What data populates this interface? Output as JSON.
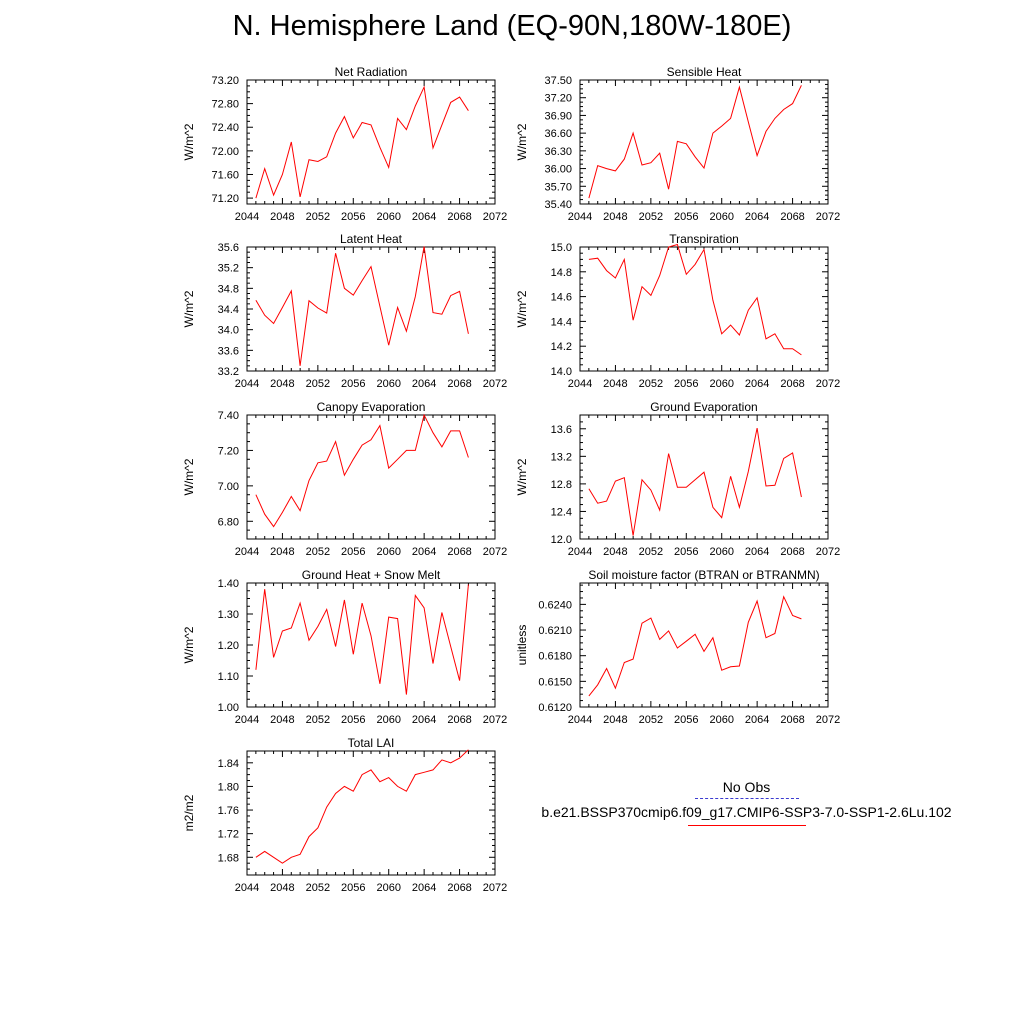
{
  "page": {
    "title": "N. Hemisphere Land (EQ-90N,180W-180E)"
  },
  "legend": {
    "obs_label": "No Obs",
    "model_label": "b.e21.BSSP370cmip6.f09_g17.CMIP6-SSP3-7.0-SSP1-2.6Lu.102",
    "obs_color": "#3b3bd0",
    "model_color": "#ff0000"
  },
  "chart_data": [
    {
      "type": "line",
      "title": "Net Radiation",
      "ylabel": "W/m^2",
      "xlim": [
        2044,
        2072
      ],
      "xticks": [
        "2044",
        "2048",
        "2052",
        "2056",
        "2060",
        "2064",
        "2068",
        "2072"
      ],
      "ylim": [
        71.1,
        73.2
      ],
      "yticks": [
        "71.20",
        "71.60",
        "72.00",
        "72.40",
        "72.80",
        "73.20"
      ],
      "series": [
        {
          "x": [
            2045,
            2046,
            2047,
            2048,
            2049,
            2050,
            2051,
            2052,
            2053,
            2054,
            2055,
            2056,
            2057,
            2058,
            2059,
            2060,
            2061,
            2062,
            2063,
            2064,
            2065,
            2066,
            2067,
            2068,
            2069
          ],
          "values": [
            71.2,
            71.7,
            71.25,
            71.6,
            72.15,
            71.22,
            71.85,
            71.82,
            71.9,
            72.3,
            72.58,
            72.22,
            72.48,
            72.44,
            72.06,
            71.72,
            72.55,
            72.36,
            72.76,
            73.08,
            72.05,
            72.44,
            72.82,
            72.91,
            72.68
          ]
        }
      ]
    },
    {
      "type": "line",
      "title": "Sensible Heat",
      "ylabel": "W/m^2",
      "xlim": [
        2044,
        2072
      ],
      "xticks": [
        "2044",
        "2048",
        "2052",
        "2056",
        "2060",
        "2064",
        "2068",
        "2072"
      ],
      "ylim": [
        35.4,
        37.5
      ],
      "yticks": [
        "35.40",
        "35.70",
        "36.00",
        "36.30",
        "36.60",
        "36.90",
        "37.20",
        "37.50"
      ],
      "series": [
        {
          "x": [
            2045,
            2046,
            2047,
            2048,
            2049,
            2050,
            2051,
            2052,
            2053,
            2054,
            2055,
            2056,
            2057,
            2058,
            2059,
            2060,
            2061,
            2062,
            2063,
            2064,
            2065,
            2066,
            2067,
            2068,
            2069
          ],
          "values": [
            35.5,
            36.05,
            36.0,
            35.96,
            36.16,
            36.6,
            36.06,
            36.1,
            36.26,
            35.65,
            36.46,
            36.42,
            36.2,
            36.01,
            36.6,
            36.72,
            36.85,
            37.38,
            36.79,
            36.22,
            36.63,
            36.85,
            37.0,
            37.1,
            37.41
          ]
        }
      ]
    },
    {
      "type": "line",
      "title": "Latent Heat",
      "ylabel": "W/m^2",
      "xlim": [
        2044,
        2072
      ],
      "xticks": [
        "2044",
        "2048",
        "2052",
        "2056",
        "2060",
        "2064",
        "2068",
        "2072"
      ],
      "ylim": [
        33.2,
        35.6
      ],
      "yticks": [
        "33.2",
        "33.6",
        "34.0",
        "34.4",
        "34.8",
        "35.2",
        "35.6"
      ],
      "series": [
        {
          "x": [
            2045,
            2046,
            2047,
            2048,
            2049,
            2050,
            2051,
            2052,
            2053,
            2054,
            2055,
            2056,
            2057,
            2058,
            2059,
            2060,
            2061,
            2062,
            2063,
            2064,
            2065,
            2066,
            2067,
            2068,
            2069
          ],
          "values": [
            34.57,
            34.28,
            34.12,
            34.43,
            34.75,
            33.3,
            34.56,
            34.42,
            34.32,
            35.48,
            34.8,
            34.67,
            34.95,
            35.22,
            34.45,
            33.7,
            34.43,
            33.97,
            34.64,
            35.61,
            34.33,
            34.3,
            34.66,
            34.74,
            33.92
          ]
        }
      ]
    },
    {
      "type": "line",
      "title": "Transpiration",
      "ylabel": "W/m^2",
      "xlim": [
        2044,
        2072
      ],
      "xticks": [
        "2044",
        "2048",
        "2052",
        "2056",
        "2060",
        "2064",
        "2068",
        "2072"
      ],
      "ylim": [
        14.0,
        15.0
      ],
      "yticks": [
        "14.0",
        "14.2",
        "14.4",
        "14.6",
        "14.8",
        "15.0"
      ],
      "series": [
        {
          "x": [
            2045,
            2046,
            2047,
            2048,
            2049,
            2050,
            2051,
            2052,
            2053,
            2054,
            2055,
            2056,
            2057,
            2058,
            2059,
            2060,
            2061,
            2062,
            2063,
            2064,
            2065,
            2066,
            2067,
            2068,
            2069
          ],
          "values": [
            14.9,
            14.91,
            14.81,
            14.75,
            14.9,
            14.41,
            14.68,
            14.61,
            14.77,
            15.0,
            15.02,
            14.78,
            14.86,
            14.98,
            14.57,
            14.3,
            14.37,
            14.29,
            14.49,
            14.59,
            14.26,
            14.3,
            14.18,
            14.18,
            14.13
          ]
        }
      ]
    },
    {
      "type": "line",
      "title": "Canopy Evaporation",
      "ylabel": "W/m^2",
      "xlim": [
        2044,
        2072
      ],
      "xticks": [
        "2044",
        "2048",
        "2052",
        "2056",
        "2060",
        "2064",
        "2068",
        "2072"
      ],
      "ylim": [
        6.7,
        7.4
      ],
      "yticks": [
        "6.80",
        "7.00",
        "7.20",
        "7.40"
      ],
      "series": [
        {
          "x": [
            2045,
            2046,
            2047,
            2048,
            2049,
            2050,
            2051,
            2052,
            2053,
            2054,
            2055,
            2056,
            2057,
            2058,
            2059,
            2060,
            2061,
            2062,
            2063,
            2064,
            2065,
            2066,
            2067,
            2068,
            2069
          ],
          "values": [
            6.95,
            6.84,
            6.77,
            6.85,
            6.94,
            6.86,
            7.03,
            7.13,
            7.14,
            7.25,
            7.06,
            7.15,
            7.23,
            7.26,
            7.34,
            7.1,
            7.15,
            7.2,
            7.2,
            7.4,
            7.3,
            7.22,
            7.31,
            7.31,
            7.16
          ]
        }
      ]
    },
    {
      "type": "line",
      "title": "Ground Evaporation",
      "ylabel": "W/m^2",
      "xlim": [
        2044,
        2072
      ],
      "xticks": [
        "2044",
        "2048",
        "2052",
        "2056",
        "2060",
        "2064",
        "2068",
        "2072"
      ],
      "ylim": [
        12.0,
        13.8
      ],
      "yticks": [
        "12.0",
        "12.4",
        "12.8",
        "13.2",
        "13.6"
      ],
      "series": [
        {
          "x": [
            2045,
            2046,
            2047,
            2048,
            2049,
            2050,
            2051,
            2052,
            2053,
            2054,
            2055,
            2056,
            2057,
            2058,
            2059,
            2060,
            2061,
            2062,
            2063,
            2064,
            2065,
            2066,
            2067,
            2068,
            2069
          ],
          "values": [
            12.73,
            12.52,
            12.55,
            12.84,
            12.89,
            12.05,
            12.86,
            12.71,
            12.42,
            13.24,
            12.75,
            12.75,
            12.86,
            12.97,
            12.46,
            12.31,
            12.91,
            12.46,
            12.98,
            13.61,
            12.77,
            12.78,
            13.17,
            13.25,
            12.61
          ]
        }
      ]
    },
    {
      "type": "line",
      "title": "Ground Heat + Snow Melt",
      "ylabel": "W/m^2",
      "xlim": [
        2044,
        2072
      ],
      "xticks": [
        "2044",
        "2048",
        "2052",
        "2056",
        "2060",
        "2064",
        "2068",
        "2072"
      ],
      "ylim": [
        1.0,
        1.4
      ],
      "yticks": [
        "1.00",
        "1.10",
        "1.20",
        "1.30",
        "1.40"
      ],
      "series": [
        {
          "x": [
            2045,
            2046,
            2047,
            2048,
            2049,
            2050,
            2051,
            2052,
            2053,
            2054,
            2055,
            2056,
            2057,
            2058,
            2059,
            2060,
            2061,
            2062,
            2063,
            2064,
            2065,
            2066,
            2067,
            2068,
            2069
          ],
          "values": [
            1.12,
            1.38,
            1.16,
            1.245,
            1.255,
            1.335,
            1.215,
            1.26,
            1.315,
            1.195,
            1.345,
            1.17,
            1.335,
            1.23,
            1.075,
            1.29,
            1.285,
            1.04,
            1.36,
            1.32,
            1.14,
            1.305,
            1.195,
            1.085,
            1.395
          ]
        }
      ]
    },
    {
      "type": "line",
      "title": "Soil moisture factor (BTRAN or BTRANMN)",
      "ylabel": "unitless",
      "xlim": [
        2044,
        2072
      ],
      "xticks": [
        "2044",
        "2048",
        "2052",
        "2056",
        "2060",
        "2064",
        "2068",
        "2072"
      ],
      "ylim": [
        0.612,
        0.6265
      ],
      "yticks": [
        "0.6120",
        "0.6150",
        "0.6180",
        "0.6210",
        "0.6240"
      ],
      "series": [
        {
          "x": [
            2045,
            2046,
            2047,
            2048,
            2049,
            2050,
            2051,
            2052,
            2053,
            2054,
            2055,
            2056,
            2057,
            2058,
            2059,
            2060,
            2061,
            2062,
            2063,
            2064,
            2065,
            2066,
            2067,
            2068,
            2069
          ],
          "values": [
            0.6133,
            0.6146,
            0.6165,
            0.6142,
            0.6172,
            0.6176,
            0.6218,
            0.6224,
            0.6199,
            0.6209,
            0.6189,
            0.6197,
            0.6205,
            0.6185,
            0.6201,
            0.6163,
            0.6167,
            0.6168,
            0.6219,
            0.6244,
            0.6201,
            0.6206,
            0.6249,
            0.6227,
            0.6223
          ]
        }
      ]
    },
    {
      "type": "line",
      "title": "Total LAI",
      "ylabel": "m2/m2",
      "xlim": [
        2044,
        2072
      ],
      "xticks": [
        "2044",
        "2048",
        "2052",
        "2056",
        "2060",
        "2064",
        "2068",
        "2072"
      ],
      "ylim": [
        1.65,
        1.86
      ],
      "yticks": [
        "1.68",
        "1.72",
        "1.76",
        "1.80",
        "1.84"
      ],
      "series": [
        {
          "x": [
            2045,
            2046,
            2047,
            2048,
            2049,
            2050,
            2051,
            2052,
            2053,
            2054,
            2055,
            2056,
            2057,
            2058,
            2059,
            2060,
            2061,
            2062,
            2063,
            2064,
            2065,
            2066,
            2067,
            2068,
            2069
          ],
          "values": [
            1.68,
            1.69,
            1.68,
            1.67,
            1.68,
            1.685,
            1.715,
            1.73,
            1.765,
            1.788,
            1.8,
            1.792,
            1.82,
            1.828,
            1.808,
            1.815,
            1.8,
            1.792,
            1.82,
            1.824,
            1.828,
            1.845,
            1.84,
            1.848,
            1.862
          ]
        }
      ]
    }
  ]
}
